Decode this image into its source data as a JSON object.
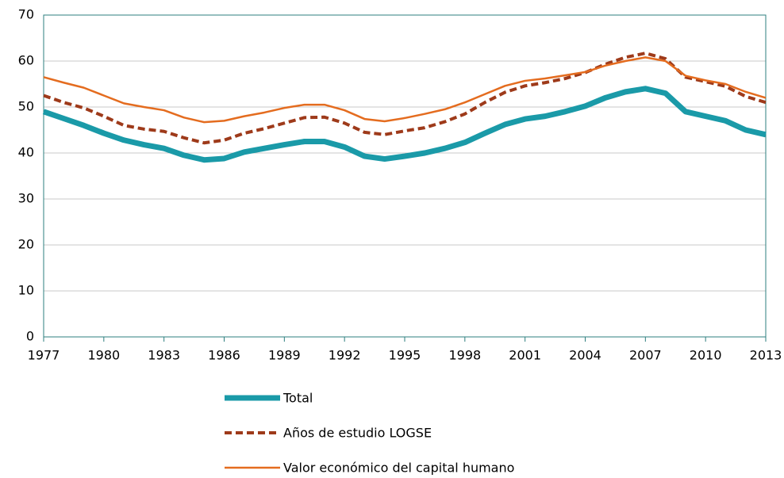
{
  "chart_data": {
    "type": "line",
    "x": [
      1977,
      1978,
      1979,
      1980,
      1981,
      1982,
      1983,
      1984,
      1985,
      1986,
      1987,
      1988,
      1989,
      1990,
      1991,
      1992,
      1993,
      1994,
      1995,
      1996,
      1997,
      1998,
      1999,
      2000,
      2001,
      2002,
      2003,
      2004,
      2005,
      2006,
      2007,
      2008,
      2009,
      2010,
      2011,
      2012,
      2013
    ],
    "xlim": [
      1977,
      2013
    ],
    "xticks": [
      1977,
      1980,
      1983,
      1986,
      1989,
      1992,
      1995,
      1998,
      2001,
      2004,
      2007,
      2010,
      2013
    ],
    "ylim": [
      0,
      70
    ],
    "yticks": [
      0,
      10,
      20,
      30,
      40,
      50,
      60,
      70
    ],
    "grid": true,
    "legend": "bottom",
    "series": [
      {
        "name": "Total",
        "color": "#1a9aa8",
        "style": "solid",
        "values": [
          49,
          47.5,
          46,
          44.3,
          42.8,
          41.8,
          41,
          39.5,
          38.5,
          38.8,
          40.2,
          41,
          41.8,
          42.5,
          42.5,
          41.3,
          39.3,
          38.7,
          39.3,
          40,
          41,
          42.3,
          44.3,
          46.2,
          47.4,
          48,
          49,
          50.2,
          52,
          53.3,
          54,
          53,
          49,
          48,
          47,
          45,
          44
        ]
      },
      {
        "name": "Años de estudio LOGSE",
        "color": "#9e3a1a",
        "style": "dashed",
        "values": [
          52.5,
          51,
          49.8,
          48,
          46,
          45.2,
          44.7,
          43.3,
          42.2,
          42.8,
          44.3,
          45.3,
          46.5,
          47.7,
          47.8,
          46.5,
          44.5,
          44,
          44.8,
          45.5,
          46.8,
          48.5,
          51,
          53.2,
          54.6,
          55.3,
          56.2,
          57.5,
          59.3,
          60.8,
          61.7,
          60.5,
          56.5,
          55.5,
          54.5,
          52.3,
          51
        ]
      },
      {
        "name": "Valor económico del capital humano",
        "color": "#e46c1f",
        "style": "solid",
        "values": [
          56.5,
          55.3,
          54.2,
          52.5,
          50.8,
          50,
          49.3,
          47.7,
          46.7,
          47,
          48,
          48.8,
          49.8,
          50.5,
          50.5,
          49.3,
          47.4,
          46.9,
          47.6,
          48.5,
          49.5,
          51,
          52.8,
          54.6,
          55.7,
          56.2,
          56.9,
          57.6,
          59,
          60,
          60.8,
          60,
          56.8,
          55.8,
          55,
          53.3,
          52
        ]
      }
    ]
  }
}
